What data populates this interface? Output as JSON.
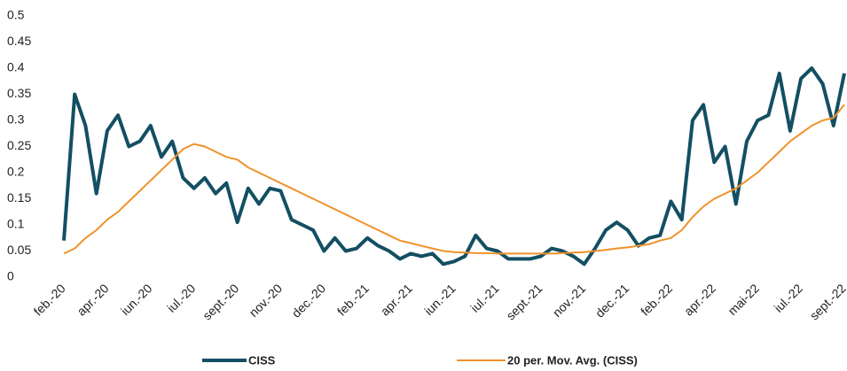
{
  "chart_data": {
    "type": "line",
    "categories": [
      "feb.-20",
      null,
      null,
      null,
      "apr.-20",
      null,
      null,
      null,
      "iun.-20",
      null,
      null,
      null,
      "iul.-20",
      null,
      null,
      null,
      "sept.-20",
      null,
      null,
      null,
      "nov.-20",
      null,
      null,
      null,
      "dec.-20",
      null,
      null,
      null,
      "feb.-21",
      null,
      null,
      null,
      "apr.-21",
      null,
      null,
      null,
      "iun.-21",
      null,
      null,
      null,
      "iul.-21",
      null,
      null,
      null,
      "sept.-21",
      null,
      null,
      null,
      "nov.-21",
      null,
      null,
      null,
      "dec.-21",
      null,
      null,
      null,
      "feb.-22",
      null,
      null,
      null,
      "apr.-22",
      null,
      null,
      null,
      "mai-22",
      null,
      null,
      null,
      "iul.-22",
      null,
      null,
      null,
      "sept.-22"
    ],
    "series": [
      {
        "name": "CISS",
        "color": "#134f63",
        "values": [
          0.07,
          0.35,
          0.29,
          0.16,
          0.28,
          0.31,
          0.25,
          0.26,
          0.29,
          0.23,
          0.26,
          0.19,
          0.17,
          0.19,
          0.16,
          0.18,
          0.105,
          0.17,
          0.14,
          0.17,
          0.165,
          0.11,
          0.1,
          0.09,
          0.05,
          0.075,
          0.05,
          0.055,
          0.075,
          0.06,
          0.05,
          0.035,
          0.045,
          0.04,
          0.045,
          0.025,
          0.03,
          0.04,
          0.08,
          0.055,
          0.05,
          0.035,
          0.035,
          0.035,
          0.04,
          0.055,
          0.05,
          0.04,
          0.025,
          0.055,
          0.09,
          0.105,
          0.09,
          0.06,
          0.075,
          0.08,
          0.145,
          0.11,
          0.3,
          0.33,
          0.22,
          0.25,
          0.14,
          0.26,
          0.3,
          0.31,
          0.39,
          0.28,
          0.38,
          0.4,
          0.37,
          0.29,
          0.39
        ]
      },
      {
        "name": "20 per. Mov. Avg. (CISS)",
        "color": "#f0922b",
        "values": [
          0.045,
          0.055,
          0.075,
          0.09,
          0.11,
          0.125,
          0.145,
          0.165,
          0.185,
          0.205,
          0.225,
          0.245,
          0.255,
          0.25,
          0.24,
          0.23,
          0.225,
          0.21,
          0.2,
          0.19,
          0.18,
          0.17,
          0.16,
          0.15,
          0.14,
          0.13,
          0.12,
          0.11,
          0.1,
          0.09,
          0.08,
          0.07,
          0.065,
          0.06,
          0.055,
          0.05,
          0.048,
          0.047,
          0.046,
          0.046,
          0.045,
          0.045,
          0.045,
          0.045,
          0.045,
          0.045,
          0.046,
          0.047,
          0.048,
          0.05,
          0.052,
          0.055,
          0.057,
          0.06,
          0.063,
          0.07,
          0.075,
          0.09,
          0.115,
          0.135,
          0.15,
          0.16,
          0.17,
          0.185,
          0.2,
          0.22,
          0.24,
          0.26,
          0.275,
          0.29,
          0.3,
          0.305,
          0.33
        ]
      }
    ],
    "ylim": [
      0,
      0.5
    ],
    "yticks": [
      0,
      0.05,
      0.1,
      0.15,
      0.2,
      0.25,
      0.3,
      0.35,
      0.4,
      0.45,
      0.5
    ],
    "grid": false
  }
}
